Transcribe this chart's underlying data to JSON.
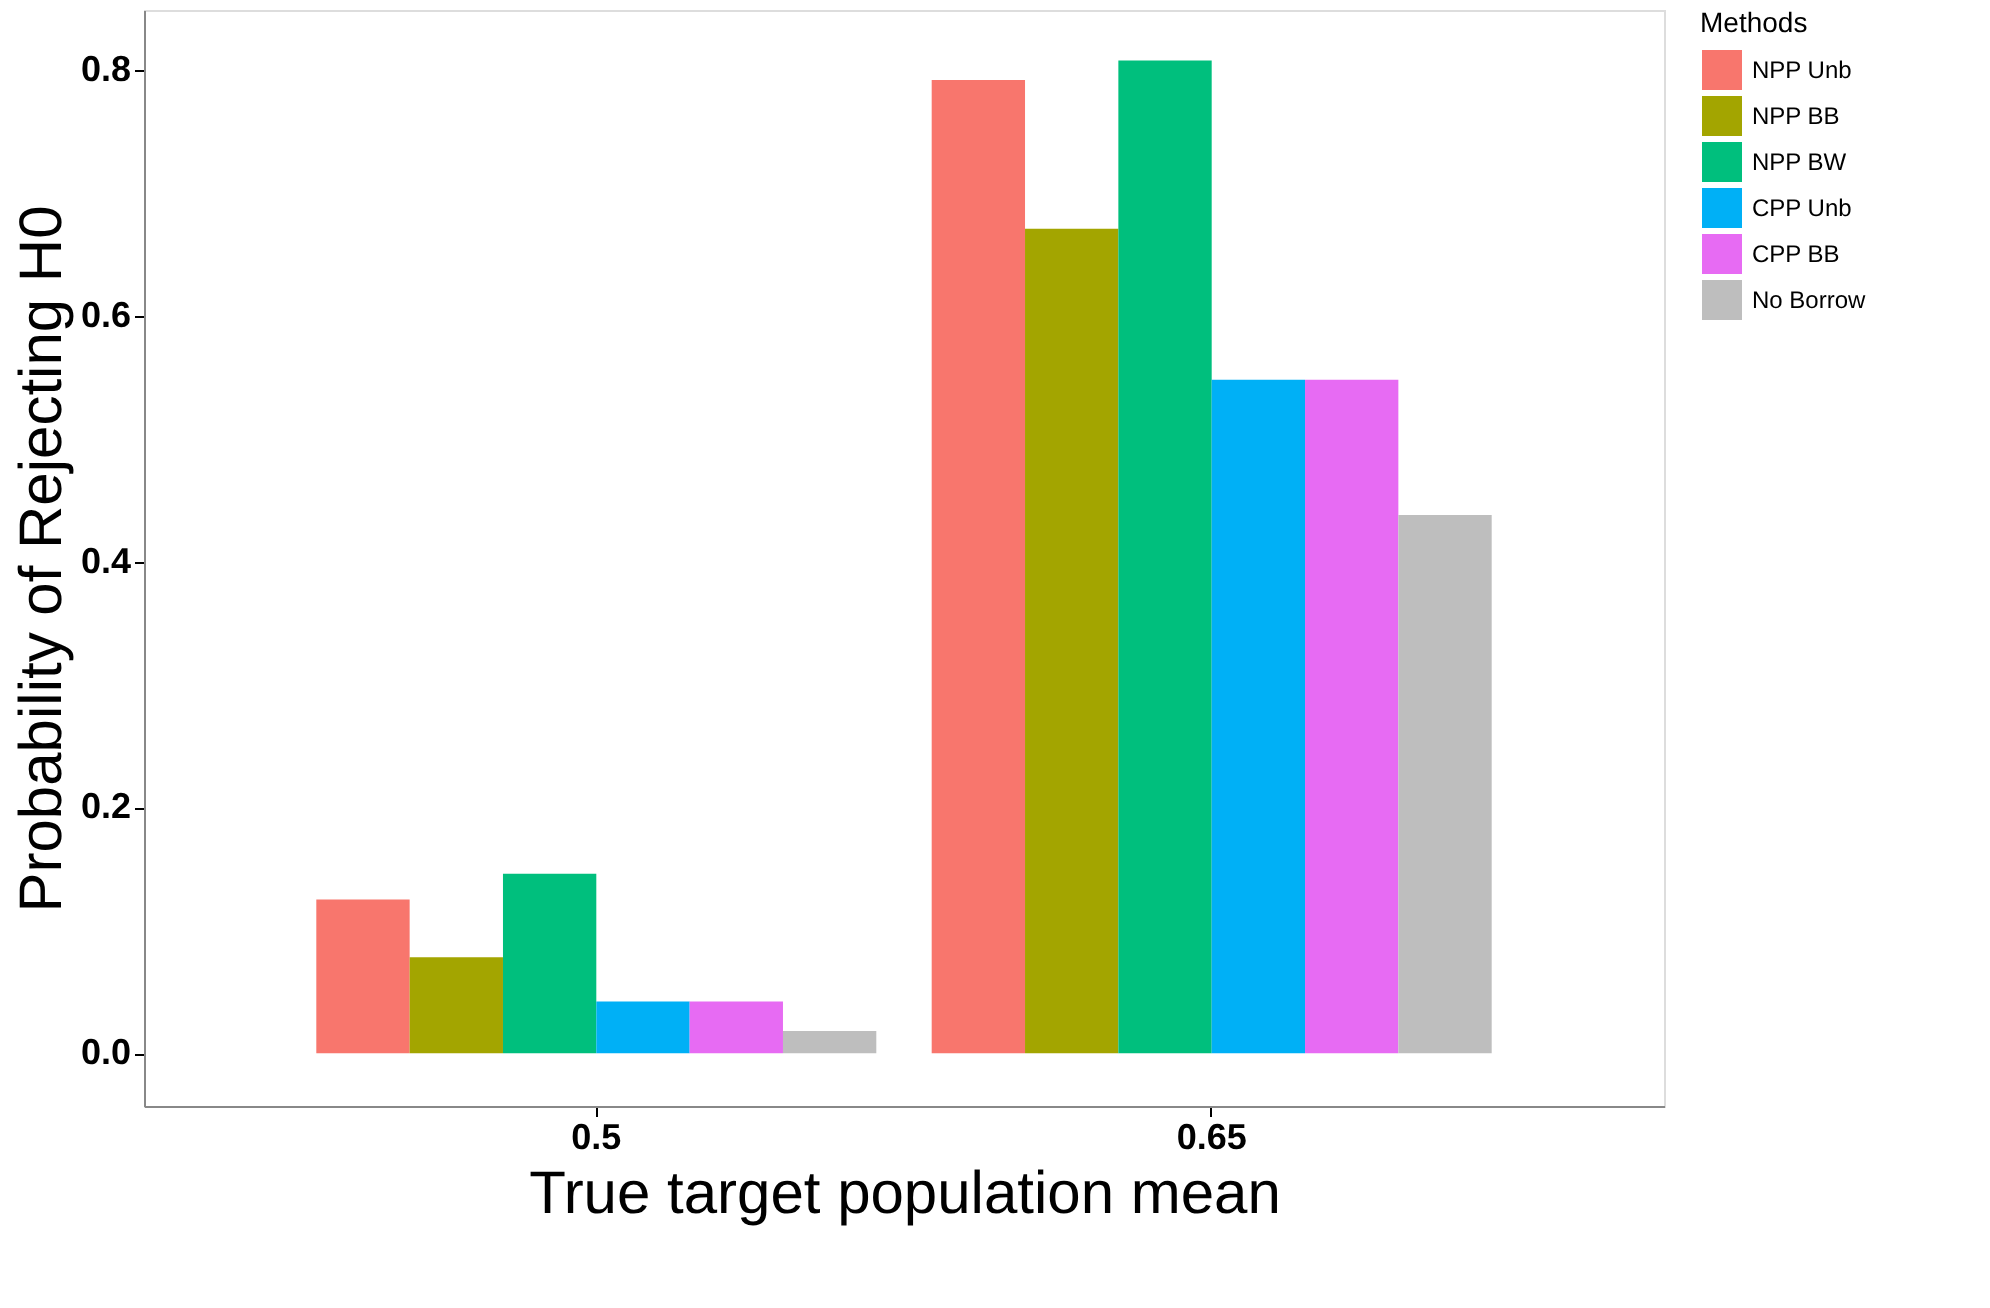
{
  "chart_data": {
    "type": "bar",
    "xlabel": "True target population mean",
    "ylabel": "Probability of Rejecting H0",
    "legend_title": "Methods",
    "categories": [
      "0.5",
      "0.65"
    ],
    "series": [
      {
        "name": "NPP Unb",
        "color": "#f8766d",
        "values": [
          0.125,
          0.792
        ]
      },
      {
        "name": "NPP BB",
        "color": "#a3a500",
        "values": [
          0.078,
          0.671
        ]
      },
      {
        "name": "NPP BW",
        "color": "#00bf7d",
        "values": [
          0.146,
          0.808
        ]
      },
      {
        "name": "CPP Unb",
        "color": "#00b0f6",
        "values": [
          0.042,
          0.548
        ]
      },
      {
        "name": "CPP BB",
        "color": "#e76bf3",
        "values": [
          0.042,
          0.548
        ]
      },
      {
        "name": "No Borrow",
        "color": "#bebebe",
        "values": [
          0.018,
          0.438
        ]
      }
    ],
    "ylim": [
      -0.043,
      0.849
    ],
    "yticks": [
      {
        "value": 0,
        "label": "0.0"
      },
      {
        "value": 0.2,
        "label": "0.2"
      },
      {
        "value": 0.4,
        "label": "0.4"
      },
      {
        "value": 0.6,
        "label": "0.6"
      },
      {
        "value": 0.8,
        "label": "0.8"
      }
    ],
    "grid": false,
    "legend": "right"
  }
}
